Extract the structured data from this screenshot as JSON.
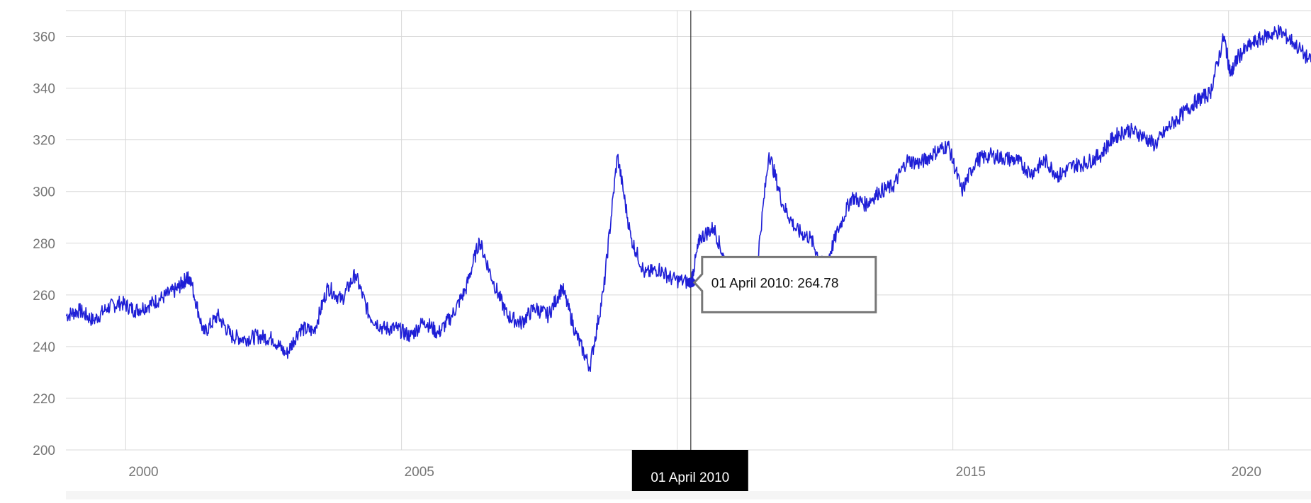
{
  "chart_data": {
    "type": "line",
    "title": "",
    "xlabel": "",
    "ylabel": "",
    "x_tick_labels": [
      "2000",
      "2005",
      "2015",
      "2020"
    ],
    "y_tick_labels": [
      "200",
      "220",
      "240",
      "260",
      "280",
      "300",
      "320",
      "340",
      "360"
    ],
    "ylim": [
      200,
      370
    ],
    "xlim": [
      "1998-12-01",
      "2021-06-30"
    ],
    "grid": true,
    "legend": "none",
    "series": [
      {
        "color": "#1f1fd6",
        "x": [
          "1998-12-01",
          "1999-03-01",
          "1999-06-01",
          "1999-09-01",
          "1999-12-01",
          "2000-03-01",
          "2000-06-01",
          "2000-09-01",
          "2000-12-01",
          "2001-02-01",
          "2001-03-01",
          "2001-06-01",
          "2001-09-01",
          "2001-12-01",
          "2002-03-01",
          "2002-06-01",
          "2002-09-01",
          "2002-12-01",
          "2003-03-01",
          "2003-06-01",
          "2003-09-01",
          "2003-12-01",
          "2004-03-01",
          "2004-06-01",
          "2004-09-01",
          "2004-12-01",
          "2005-03-01",
          "2005-06-01",
          "2005-09-01",
          "2005-12-01",
          "2006-03-01",
          "2006-06-01",
          "2006-09-01",
          "2006-12-01",
          "2007-03-01",
          "2007-06-01",
          "2007-09-01",
          "2007-12-01",
          "2008-03-01",
          "2008-06-01",
          "2008-09-01",
          "2008-12-01",
          "2009-03-01",
          "2009-06-01",
          "2009-09-01",
          "2009-12-01",
          "2010-04-01",
          "2010-06-01",
          "2010-09-01",
          "2010-12-01",
          "2011-03-01",
          "2011-06-01",
          "2011-09-01",
          "2011-12-01",
          "2012-03-01",
          "2012-06-01",
          "2012-09-01",
          "2012-12-01",
          "2013-03-01",
          "2013-06-01",
          "2013-09-01",
          "2013-12-01",
          "2014-03-01",
          "2014-06-01",
          "2014-09-01",
          "2014-12-01",
          "2015-03-01",
          "2015-06-01",
          "2015-09-01",
          "2015-12-01",
          "2016-03-01",
          "2016-06-01",
          "2016-09-01",
          "2016-12-01",
          "2017-03-01",
          "2017-06-01",
          "2017-09-01",
          "2017-12-01",
          "2018-03-01",
          "2018-06-01",
          "2018-09-01",
          "2018-12-01",
          "2019-03-01",
          "2019-06-01",
          "2019-09-01",
          "2019-12-01",
          "2020-01-15",
          "2020-03-01",
          "2020-06-01",
          "2020-09-01",
          "2020-12-01",
          "2021-03-01",
          "2021-06-30"
        ],
        "y": [
          252,
          254,
          250,
          255,
          257,
          254,
          256,
          259,
          262,
          266,
          267,
          245,
          252,
          244,
          243,
          244,
          243,
          237,
          247,
          246,
          263,
          258,
          268,
          252,
          247,
          247,
          244,
          250,
          245,
          252,
          262,
          281,
          265,
          252,
          249,
          255,
          252,
          263,
          245,
          232,
          262,
          314,
          282,
          268,
          270,
          266,
          264.78,
          282,
          286,
          270,
          270,
          265,
          315,
          295,
          285,
          282,
          270,
          285,
          298,
          295,
          300,
          302,
          312,
          311,
          315,
          318,
          300,
          312,
          314,
          313,
          312,
          307,
          312,
          306,
          310,
          311,
          314,
          321,
          324,
          322,
          318,
          325,
          330,
          335,
          338,
          360,
          345,
          352,
          357,
          360,
          362,
          358,
          350
        ]
      }
    ],
    "annotations": [
      {
        "text": "01 April 2010: 264.78",
        "x": "2010-04-01",
        "y": 264.78
      }
    ],
    "crosshair_label": "01 April 2010"
  }
}
